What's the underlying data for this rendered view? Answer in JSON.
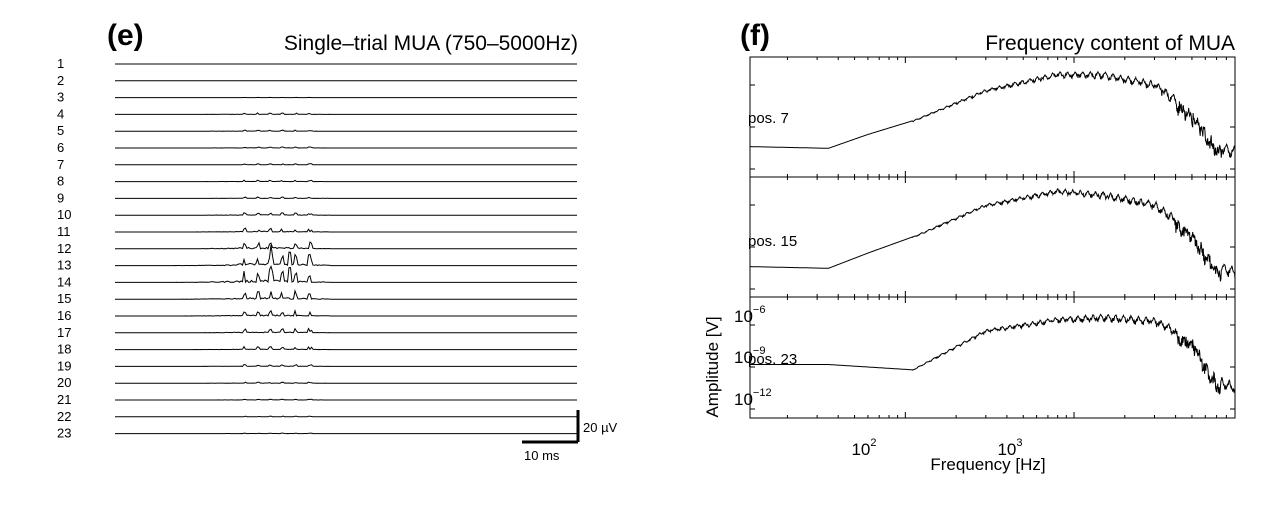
{
  "panels": {
    "e": {
      "letter": "(e)",
      "title": "Single–trial MUA (750–5000Hz)",
      "channels": [
        "1",
        "2",
        "3",
        "4",
        "5",
        "6",
        "7",
        "8",
        "9",
        "10",
        "11",
        "12",
        "13",
        "14",
        "15",
        "16",
        "17",
        "18",
        "19",
        "20",
        "21",
        "22",
        "23"
      ],
      "scalebar": {
        "amplitude_label": "20 µV",
        "time_label": "10 ms"
      }
    },
    "f": {
      "letter": "(f)",
      "title": "Frequency content of MUA",
      "subplots": [
        {
          "label": "pos. 7"
        },
        {
          "label": "pos. 15"
        },
        {
          "label": "pos. 23"
        }
      ]
    }
  },
  "chart_data": [
    {
      "type": "line",
      "title": "Single–trial MUA (750–5000Hz)",
      "series_labels": [
        "1",
        "2",
        "3",
        "4",
        "5",
        "6",
        "7",
        "8",
        "9",
        "10",
        "11",
        "12",
        "13",
        "14",
        "15",
        "16",
        "17",
        "18",
        "19",
        "20",
        "21",
        "22",
        "23"
      ],
      "activity_level": [
        0.0,
        0.0,
        0.02,
        0.12,
        0.1,
        0.1,
        0.1,
        0.12,
        0.12,
        0.2,
        0.35,
        0.6,
        1.0,
        1.0,
        0.7,
        0.45,
        0.35,
        0.25,
        0.15,
        0.1,
        0.08,
        0.06,
        0.05
      ],
      "scale_bar": {
        "amplitude": "20 µV",
        "time": "10 ms"
      },
      "grid": false
    },
    {
      "type": "line",
      "title": "Frequency content of MUA",
      "xlabel": "Frequency [Hz]",
      "ylabel": "Amplitude [V]",
      "xscale": "log",
      "yscale": "log",
      "xlim": [
        12,
        9000
      ],
      "xticks": [
        {
          "base": "10",
          "exp": "2"
        },
        {
          "base": "10",
          "exp": "3"
        }
      ],
      "yticks": [
        {
          "base": "10",
          "exp": "−6"
        },
        {
          "base": "10",
          "exp": "−9"
        },
        {
          "base": "10",
          "exp": "−12"
        }
      ],
      "grid": false,
      "series": [
        {
          "name": "pos. 7",
          "x": [
            12,
            35,
            60,
            110,
            300,
            800,
            1500,
            3000,
            5000,
            7000,
            9000
          ],
          "y": [
            1e-11,
            8e-12,
            5e-11,
            3e-10,
            2e-08,
            2e-07,
            2e-07,
            6e-08,
            2e-09,
            2e-11,
            1e-11
          ]
        },
        {
          "name": "pos. 15",
          "x": [
            12,
            35,
            60,
            110,
            300,
            800,
            1500,
            3000,
            5000,
            7000,
            9000
          ],
          "y": [
            1e-11,
            8e-12,
            6e-11,
            5e-10,
            4e-08,
            3e-07,
            2e-07,
            6e-08,
            2e-09,
            2e-11,
            1e-11
          ]
        },
        {
          "name": "pos. 23",
          "x": [
            12,
            35,
            110,
            300,
            800,
            1500,
            3000,
            5000,
            7000,
            9000
          ],
          "y": [
            2e-10,
            2e-10,
            1e-10,
            2e-08,
            1e-07,
            1.5e-07,
            1e-07,
            1e-08,
            5e-11,
            2e-11
          ]
        }
      ]
    }
  ]
}
